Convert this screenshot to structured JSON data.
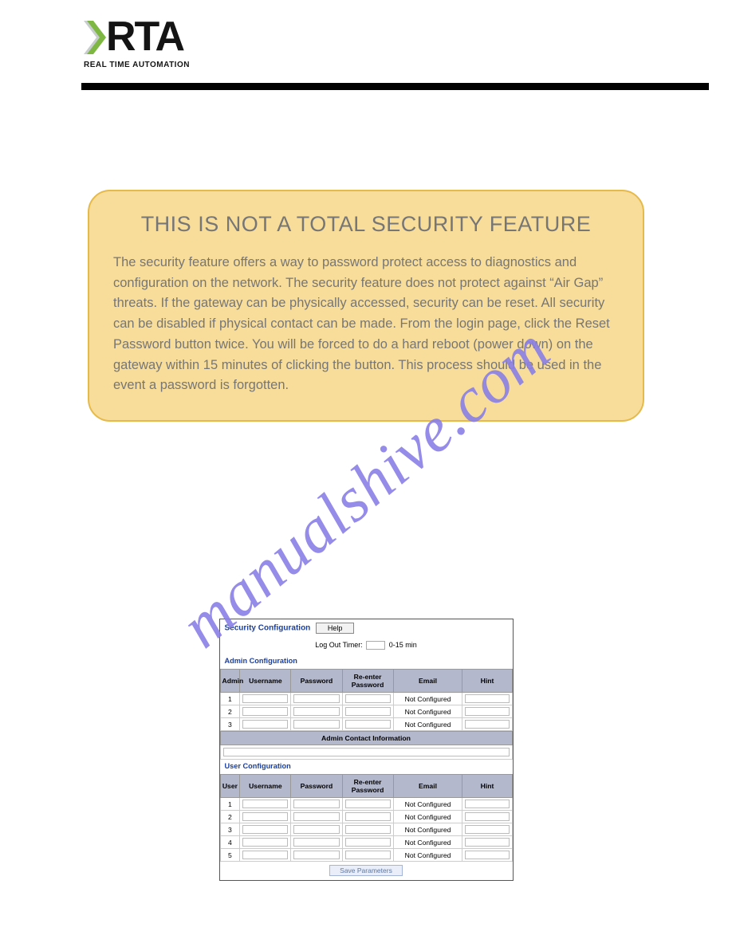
{
  "logo": {
    "main": "RTA",
    "sub": "REAL TIME AUTOMATION",
    "main_color": "#141414",
    "sub_color": "#141414",
    "chevron_back": "#c7cdcd",
    "chevron_front": "#7eb742"
  },
  "callout": {
    "bg": "#f8dd9a",
    "border": "#e6ba4a",
    "title_color": "#767676",
    "body_color": "#767676",
    "title": "THIS IS NOT A TOTAL SECURITY FEATURE",
    "body": "The security feature offers a way to password protect access to diagnostics and configuration on the network. The security feature does not protect against “Air Gap” threats. If the gateway can be physically accessed, security can be reset. All security can be disabled if physical contact can be made. From the login page, click the Reset Password button twice. You will be forced to do a hard reboot (power down) on the gateway within 15 minutes of clicking the button. This process should be used in the event a password is forgotten."
  },
  "watermark": {
    "text": "manualshive.com",
    "color": "#8a7fe6"
  },
  "config": {
    "title": "Security Configuration",
    "title_color": "#1a3fa0",
    "help_label": "Help",
    "logout_label": "Log Out Timer:",
    "logout_suffix": "0-15 min",
    "logout_value": "",
    "admin_section": "Admin Configuration",
    "user_section": "User Configuration",
    "section_color": "#1a3fa0",
    "columns_admin": {
      "idx": "Admin",
      "user": "Username",
      "pass": "Password",
      "repass": "Re-enter Password",
      "email": "Email",
      "hint": "Hint"
    },
    "columns_user": {
      "idx": "User",
      "user": "Username",
      "pass": "Password",
      "repass": "Re-enter Password",
      "email": "Email",
      "hint": "Hint"
    },
    "not_configured": "Not Configured",
    "admin_rows": [
      {
        "n": "1",
        "email": "Not Configured"
      },
      {
        "n": "2",
        "email": "Not Configured"
      },
      {
        "n": "3",
        "email": "Not Configured"
      }
    ],
    "contact_header": "Admin Contact Information",
    "contact_value": "",
    "user_rows": [
      {
        "n": "1",
        "email": "Not Configured"
      },
      {
        "n": "2",
        "email": "Not Configured"
      },
      {
        "n": "3",
        "email": "Not Configured"
      },
      {
        "n": "4",
        "email": "Not Configured"
      },
      {
        "n": "5",
        "email": "Not Configured"
      }
    ],
    "save_label": "Save Parameters",
    "header_bg": "#b3b8cc"
  }
}
